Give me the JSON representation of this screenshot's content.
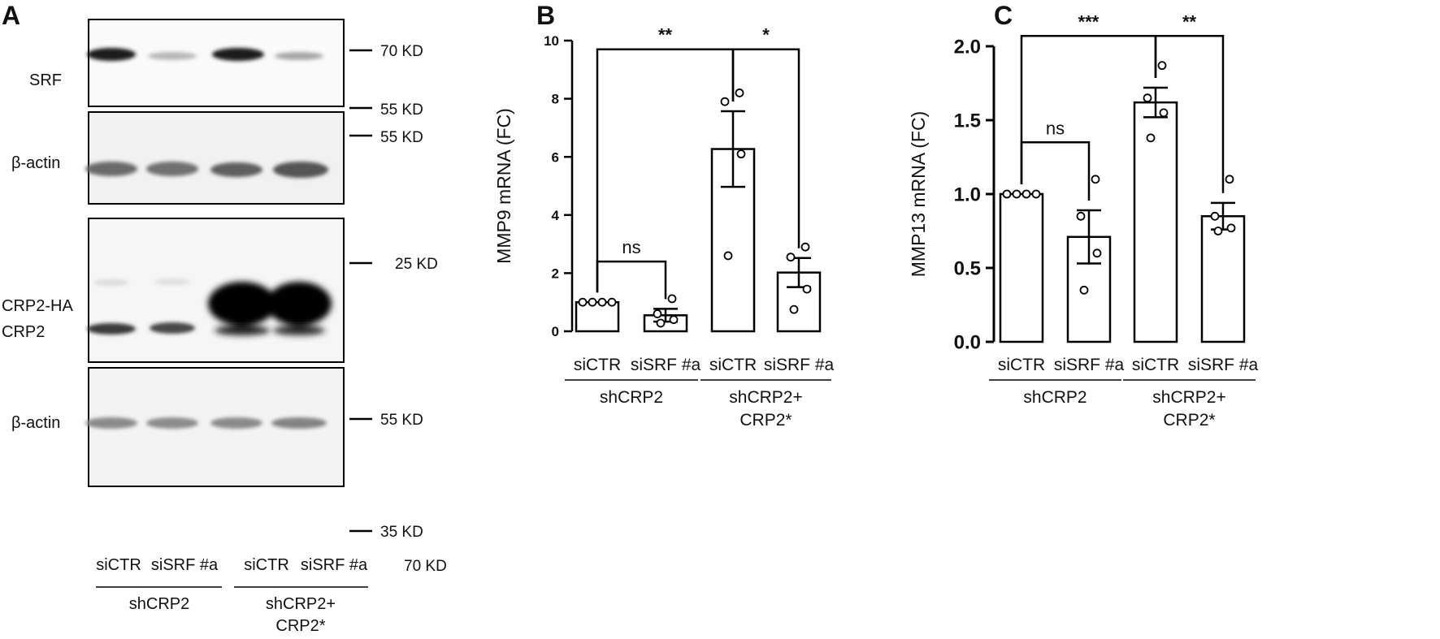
{
  "panel_a": {
    "letter": "A",
    "row_labels": [
      "SRF",
      "β-actin",
      "CRP2-HA",
      "CRP2",
      "β-actin"
    ],
    "markers": [
      "70 KD",
      "55 KD",
      "55 KD",
      "25 KD",
      "55 KD",
      "35 KD",
      "70 KD"
    ],
    "lanes": [
      "siCTR",
      "siSRF #a",
      "siCTR",
      "siSRF #a"
    ],
    "groups": [
      {
        "line1": "shCRP2",
        "line2": ""
      },
      {
        "line1": "shCRP2+",
        "line2": "CRP2*"
      }
    ]
  },
  "chart_data": [
    {
      "panel": "B",
      "type": "bar",
      "ylabel": "MMP9 mRNA (FC)",
      "categories": [
        "siCTR",
        "siSRF #a",
        "siCTR",
        "siSRF #a"
      ],
      "groups": [
        {
          "line1": "shCRP2",
          "line2": ""
        },
        {
          "line1": "shCRP2+",
          "line2": "CRP2*"
        }
      ],
      "ylim": [
        0,
        10
      ],
      "yticks": [
        "0",
        "2",
        "4",
        "6",
        "8",
        "10"
      ],
      "values": [
        1.0,
        0.55,
        6.27,
        2.02
      ],
      "sem": [
        0.0,
        0.22,
        1.3,
        0.5
      ],
      "points": [
        [
          1.0,
          1.0,
          1.0,
          1.0
        ],
        [
          0.28,
          0.4,
          0.6,
          1.12
        ],
        [
          2.6,
          6.1,
          7.9,
          8.2
        ],
        [
          0.75,
          1.45,
          2.55,
          2.9
        ]
      ],
      "significance": [
        {
          "from": 0,
          "to": 1,
          "label": "ns",
          "y": 2.4
        },
        {
          "from": 0,
          "to": 2,
          "label": "**",
          "y": 9.7
        },
        {
          "from": 2,
          "to": 3,
          "label": "*",
          "y": 9.7
        }
      ]
    },
    {
      "panel": "C",
      "type": "bar",
      "ylabel": "MMP13 mRNA (FC)",
      "categories": [
        "siCTR",
        "siSRF #a",
        "siCTR",
        "siSRF #a"
      ],
      "groups": [
        {
          "line1": "shCRP2",
          "line2": ""
        },
        {
          "line1": "shCRP2+",
          "line2": "CRP2*"
        }
      ],
      "ylim": [
        0,
        2.0
      ],
      "yticks": [
        "0.0",
        "0.5",
        "1.0",
        "1.5",
        "2.0"
      ],
      "values": [
        1.0,
        0.71,
        1.62,
        0.85
      ],
      "sem": [
        0.0,
        0.18,
        0.1,
        0.09
      ],
      "points": [
        [
          1.0,
          1.0,
          1.0,
          1.0
        ],
        [
          0.35,
          0.6,
          0.85,
          1.1
        ],
        [
          1.38,
          1.55,
          1.65,
          1.87
        ],
        [
          0.75,
          0.77,
          0.85,
          1.1
        ]
      ],
      "significance": [
        {
          "from": 0,
          "to": 1,
          "label": "ns",
          "y": 1.35
        },
        {
          "from": 0,
          "to": 2,
          "label": "***",
          "y": 2.07
        },
        {
          "from": 2,
          "to": 3,
          "label": "**",
          "y": 2.07
        }
      ]
    }
  ]
}
